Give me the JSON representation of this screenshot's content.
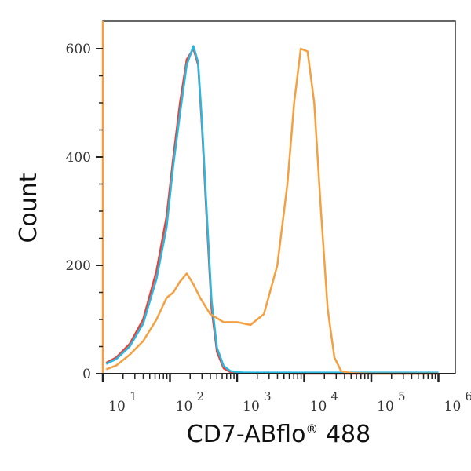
{
  "chart_data": {
    "type": "line",
    "title": "",
    "xlabel": "CD7-ABflo® 488",
    "xlabel_main": "CD7-ABflo",
    "xlabel_reg": "®",
    "xlabel_tail": " 488",
    "ylabel": "Count",
    "xscale": "log",
    "xlim_log10": [
      1,
      6.1
    ],
    "ylim": [
      0,
      650
    ],
    "x_ticks": [
      "10^1",
      "10^2",
      "10^3",
      "10^4",
      "10^5",
      "10^6"
    ],
    "x_tick_exps": [
      "1",
      "2",
      "3",
      "4",
      "5",
      "6"
    ],
    "y_ticks": [
      "0",
      "200",
      "400",
      "600"
    ],
    "grid": false,
    "legend": null,
    "series": [
      {
        "name": "red",
        "color": "#e8433a",
        "x_log10": [
          1.05,
          1.2,
          1.4,
          1.6,
          1.8,
          1.95,
          2.05,
          2.15,
          2.25,
          2.35,
          2.42,
          2.48,
          2.55,
          2.62,
          2.7,
          2.8,
          2.9,
          3.0,
          3.1,
          4.0,
          5.0,
          6.0
        ],
        "y": [
          20,
          30,
          55,
          100,
          190,
          290,
          400,
          500,
          580,
          600,
          570,
          450,
          280,
          120,
          40,
          10,
          3,
          2,
          1,
          0,
          0,
          0
        ]
      },
      {
        "name": "blue",
        "color": "#29b8e0",
        "x_log10": [
          1.05,
          1.2,
          1.4,
          1.6,
          1.8,
          1.95,
          2.05,
          2.15,
          2.25,
          2.35,
          2.42,
          2.48,
          2.55,
          2.62,
          2.7,
          2.8,
          2.9,
          3.0,
          3.1,
          4.0,
          5.0,
          6.0
        ],
        "y": [
          18,
          27,
          50,
          92,
          175,
          270,
          385,
          480,
          570,
          605,
          575,
          460,
          295,
          135,
          48,
          14,
          5,
          3,
          2,
          2,
          2,
          2
        ]
      },
      {
        "name": "orange",
        "color": "#f5a040",
        "x_log10": [
          1.05,
          1.2,
          1.4,
          1.6,
          1.8,
          1.95,
          2.05,
          2.15,
          2.25,
          2.35,
          2.45,
          2.6,
          2.8,
          3.0,
          3.2,
          3.4,
          3.6,
          3.75,
          3.85,
          3.95,
          4.05,
          4.15,
          4.25,
          4.35,
          4.45,
          4.55,
          4.7,
          5.0,
          6.0
        ],
        "y": [
          8,
          15,
          35,
          60,
          100,
          140,
          150,
          170,
          185,
          165,
          140,
          110,
          95,
          95,
          90,
          110,
          200,
          350,
          500,
          600,
          595,
          500,
          300,
          120,
          30,
          5,
          1,
          0,
          0
        ]
      }
    ]
  }
}
